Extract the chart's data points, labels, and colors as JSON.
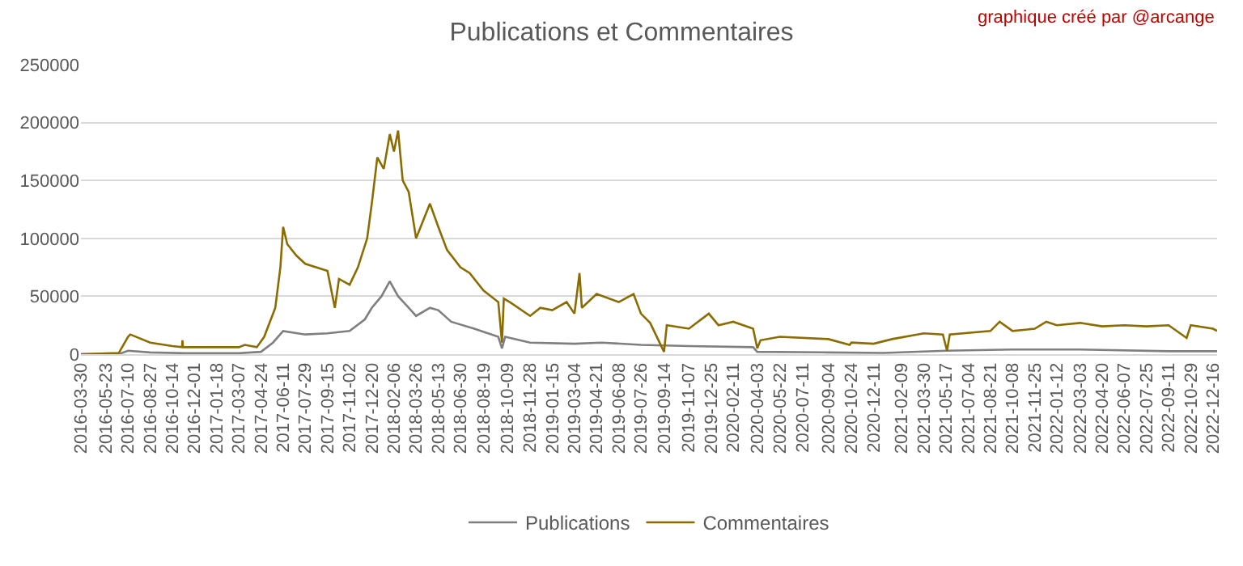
{
  "chart_data": {
    "type": "line",
    "title": "Publications et Commentaires",
    "annotations": [
      "graphique créé par @arcange"
    ],
    "xlim": [
      "2016-03-30",
      "2022-12-25"
    ],
    "xticks": [
      "2016-03-30",
      "2016-05-23",
      "2016-07-10",
      "2016-08-27",
      "2016-10-14",
      "2016-12-01",
      "2017-01-18",
      "2017-03-07",
      "2017-04-24",
      "2017-06-11",
      "2017-07-29",
      "2017-09-15",
      "2017-11-02",
      "2017-12-20",
      "2018-02-06",
      "2018-03-26",
      "2018-05-13",
      "2018-06-30",
      "2018-08-19",
      "2018-10-09",
      "2018-11-28",
      "2019-01-15",
      "2019-03-04",
      "2019-04-21",
      "2019-06-08",
      "2019-07-26",
      "2019-09-14",
      "2019-11-07",
      "2019-12-25",
      "2020-02-11",
      "2020-04-03",
      "2020-05-22",
      "2020-07-11",
      "2020-09-04",
      "2020-10-24",
      "2020-12-11",
      "2021-02-09",
      "2021-03-30",
      "2021-05-17",
      "2021-07-04",
      "2021-08-21",
      "2021-10-08",
      "2021-11-25",
      "2022-01-12",
      "2022-03-03",
      "2022-04-20",
      "2022-06-07",
      "2022-07-25",
      "2022-09-11",
      "2022-10-29",
      "2022-12-16"
    ],
    "ylim": [
      0,
      250000
    ],
    "yticks": [
      0,
      50000,
      100000,
      150000,
      200000,
      250000
    ],
    "grid": "y",
    "legend": "bottom",
    "marker": "none",
    "line_style": "solid",
    "series": [
      {
        "name": "Publications",
        "color": "#7f7f7f",
        "x": [
          "2016-03-30",
          "2016-06-20",
          "2016-07-10",
          "2016-08-27",
          "2016-11-10",
          "2017-03-07",
          "2017-04-24",
          "2017-05-20",
          "2017-06-11",
          "2017-07-29",
          "2017-09-15",
          "2017-11-02",
          "2017-12-05",
          "2017-12-20",
          "2018-01-10",
          "2018-01-28",
          "2018-02-15",
          "2018-03-10",
          "2018-03-26",
          "2018-04-25",
          "2018-05-13",
          "2018-06-10",
          "2018-07-30",
          "2018-09-20",
          "2018-09-28",
          "2018-10-05",
          "2018-11-28",
          "2019-03-04",
          "2019-05-01",
          "2019-07-26",
          "2019-11-07",
          "2020-03-25",
          "2020-04-03",
          "2020-09-04",
          "2021-01-01",
          "2021-05-17",
          "2021-10-08",
          "2022-03-03",
          "2022-09-11",
          "2022-12-25"
        ],
        "values": [
          0,
          0,
          3000,
          1500,
          800,
          800,
          2000,
          10000,
          20000,
          17000,
          18000,
          20000,
          30000,
          40000,
          50000,
          63000,
          50000,
          40000,
          33000,
          40000,
          38000,
          28000,
          22000,
          15000,
          5000,
          15000,
          10000,
          9000,
          10000,
          8000,
          7000,
          6000,
          2000,
          1500,
          1000,
          3000,
          4000,
          4000,
          2500,
          2500
        ]
      },
      {
        "name": "Commentaires",
        "color": "#8b6c00",
        "x": [
          "2016-03-30",
          "2016-06-20",
          "2016-07-10",
          "2016-07-15",
          "2016-08-27",
          "2016-10-14",
          "2016-11-04",
          "2016-11-05",
          "2016-11-06",
          "2017-01-18",
          "2017-03-07",
          "2017-03-20",
          "2017-04-15",
          "2017-05-01",
          "2017-05-25",
          "2017-06-05",
          "2017-06-11",
          "2017-06-20",
          "2017-07-10",
          "2017-07-29",
          "2017-09-15",
          "2017-10-01",
          "2017-10-10",
          "2017-11-02",
          "2017-11-20",
          "2017-12-10",
          "2017-12-20",
          "2018-01-01",
          "2018-01-15",
          "2018-01-28",
          "2018-02-06",
          "2018-02-15",
          "2018-02-25",
          "2018-03-10",
          "2018-03-26",
          "2018-04-10",
          "2018-04-25",
          "2018-05-13",
          "2018-06-01",
          "2018-06-30",
          "2018-07-20",
          "2018-08-19",
          "2018-09-20",
          "2018-09-28",
          "2018-10-02",
          "2018-10-15",
          "2018-11-28",
          "2018-12-20",
          "2019-01-15",
          "2019-02-15",
          "2019-03-04",
          "2019-03-15",
          "2019-03-20",
          "2019-04-21",
          "2019-06-08",
          "2019-07-10",
          "2019-07-26",
          "2019-08-15",
          "2019-09-14",
          "2019-09-20",
          "2019-11-07",
          "2019-12-20",
          "2020-01-10",
          "2020-02-11",
          "2020-03-25",
          "2020-04-03",
          "2020-04-10",
          "2020-05-22",
          "2020-09-04",
          "2020-10-20",
          "2020-10-24",
          "2020-12-11",
          "2021-01-20",
          "2021-03-30",
          "2021-05-10",
          "2021-05-19",
          "2021-05-25",
          "2021-08-21",
          "2021-09-10",
          "2021-10-08",
          "2021-11-25",
          "2021-12-20",
          "2022-01-12",
          "2022-03-03",
          "2022-04-20",
          "2022-06-07",
          "2022-07-25",
          "2022-09-11",
          "2022-10-20",
          "2022-10-29",
          "2022-12-16",
          "2022-12-25"
        ],
        "values": [
          0,
          1000,
          15000,
          17000,
          10000,
          7000,
          6000,
          12000,
          6000,
          6000,
          6000,
          8000,
          6000,
          15000,
          40000,
          75000,
          110000,
          95000,
          85000,
          78000,
          72000,
          40000,
          65000,
          60000,
          75000,
          100000,
          130000,
          170000,
          160000,
          190000,
          175000,
          193000,
          150000,
          140000,
          100000,
          115000,
          130000,
          110000,
          90000,
          75000,
          70000,
          55000,
          45000,
          10000,
          48000,
          45000,
          33000,
          40000,
          38000,
          45000,
          35000,
          70000,
          40000,
          52000,
          45000,
          52000,
          35000,
          27000,
          2000,
          25000,
          22000,
          35000,
          25000,
          28000,
          22000,
          5000,
          12000,
          15000,
          13000,
          8000,
          10000,
          9000,
          13000,
          18000,
          17000,
          3000,
          17000,
          20000,
          28000,
          20000,
          22000,
          28000,
          25000,
          27000,
          24000,
          25000,
          24000,
          25000,
          14000,
          25000,
          22000,
          20000
        ]
      }
    ]
  }
}
